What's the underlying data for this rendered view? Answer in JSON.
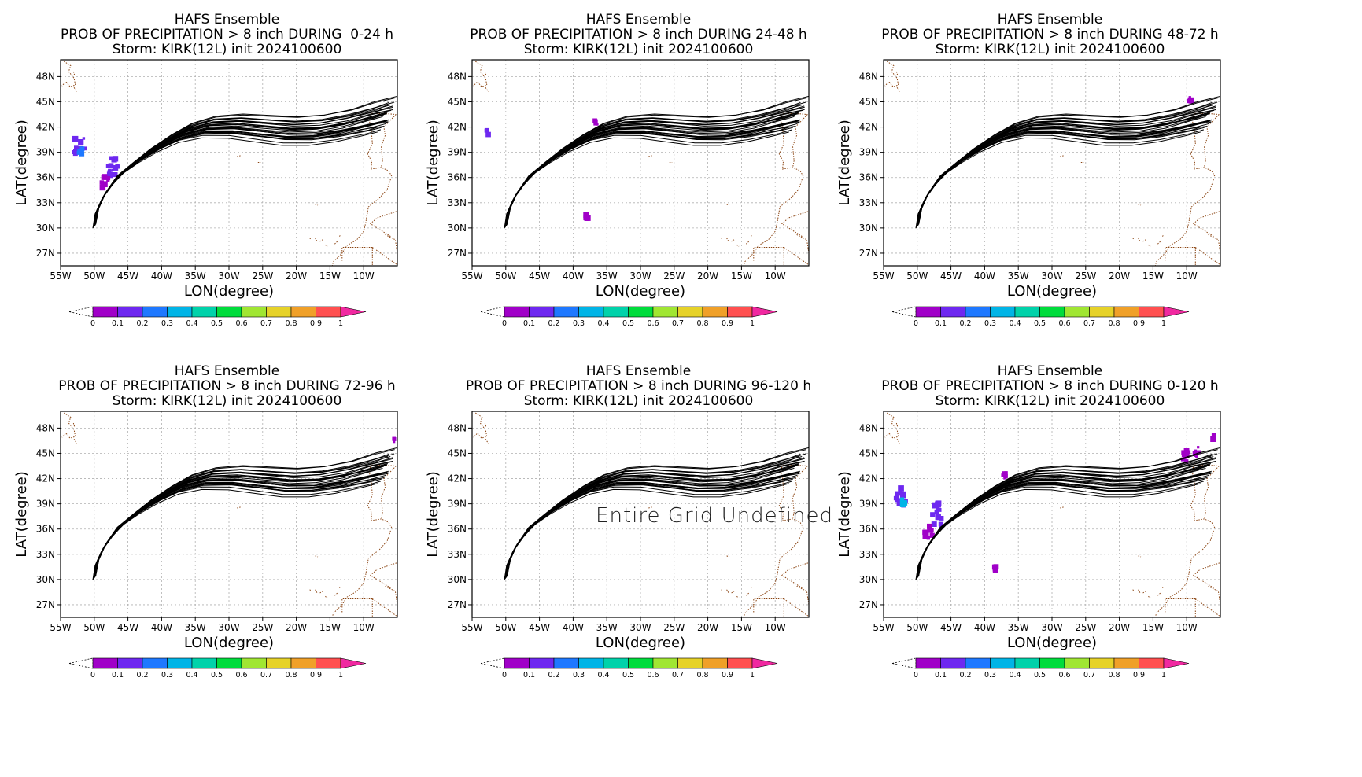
{
  "colors": {
    "track": "#000000",
    "coast": "#8b4513",
    "grid": "#b0b0b0",
    "prob": [
      "#a000c8",
      "#6e28f0",
      "#1e78ff",
      "#00b4e6",
      "#00d2aa",
      "#00dc3c",
      "#a0e632",
      "#e6d228",
      "#f0a028",
      "#ff5050",
      "#f028a0"
    ]
  },
  "colorbar": {
    "labels": [
      "0",
      "0.1",
      "0.2",
      "0.3",
      "0.4",
      "0.5",
      "0.6",
      "0.7",
      "0.8",
      "0.9",
      "1"
    ]
  },
  "chart_data": [
    {
      "type": "line",
      "title_line1": "HAFS Ensemble",
      "title_line2": "PROB OF PRECIPITATION > 8 inch DURING  0-24 h",
      "title_line3": "Storm: KIRK(12L) init 2024100600",
      "xlabel": "LON(degree)",
      "ylabel": "LAT(degree)",
      "xticks": [
        "55W",
        "50W",
        "45W",
        "40W",
        "35W",
        "30W",
        "25W",
        "20W",
        "15W",
        "10W"
      ],
      "yticks": [
        "27N",
        "30N",
        "33N",
        "36N",
        "39N",
        "42N",
        "45N",
        "48N"
      ],
      "xlim": [
        -55,
        -5
      ],
      "ylim": [
        25.5,
        50
      ],
      "grid": true,
      "note": "",
      "blobs": [
        {
          "lon": -52.3,
          "lat": 39.8,
          "r": 1.1,
          "color": 1
        },
        {
          "lon": -52.0,
          "lat": 39.2,
          "r": 0.4,
          "color": 2
        },
        {
          "lon": -47.0,
          "lat": 37.2,
          "r": 1.1,
          "color": 1
        },
        {
          "lon": -48.4,
          "lat": 35.5,
          "r": 0.7,
          "color": 0
        }
      ]
    },
    {
      "type": "line",
      "title_line1": "HAFS Ensemble",
      "title_line2": "PROB OF PRECIPITATION > 8 inch DURING 24-48 h",
      "title_line3": "Storm: KIRK(12L) init 2024100600",
      "xlabel": "LON(degree)",
      "ylabel": "LAT(degree)",
      "xticks": [
        "55W",
        "50W",
        "45W",
        "40W",
        "35W",
        "30W",
        "25W",
        "20W",
        "15W",
        "10W"
      ],
      "yticks": [
        "27N",
        "30N",
        "33N",
        "36N",
        "39N",
        "42N",
        "45N",
        "48N"
      ],
      "xlim": [
        -55,
        -5
      ],
      "ylim": [
        25.5,
        50
      ],
      "grid": true,
      "note": "",
      "blobs": [
        {
          "lon": -52.8,
          "lat": 41.4,
          "r": 0.35,
          "color": 1
        },
        {
          "lon": -36.5,
          "lat": 42.6,
          "r": 0.35,
          "color": 0
        },
        {
          "lon": -38.0,
          "lat": 31.3,
          "r": 0.25,
          "color": 0
        }
      ]
    },
    {
      "type": "line",
      "title_line1": "HAFS Ensemble",
      "title_line2": "PROB OF PRECIPITATION > 8 inch DURING 48-72 h",
      "title_line3": "Storm: KIRK(12L) init 2024100600",
      "xlabel": "LON(degree)",
      "ylabel": "LAT(degree)",
      "xticks": [
        "55W",
        "50W",
        "45W",
        "40W",
        "35W",
        "30W",
        "25W",
        "20W",
        "15W",
        "10W"
      ],
      "yticks": [
        "27N",
        "30N",
        "33N",
        "36N",
        "39N",
        "42N",
        "45N",
        "48N"
      ],
      "xlim": [
        -55,
        -5
      ],
      "ylim": [
        25.5,
        50
      ],
      "grid": true,
      "note": "",
      "blobs": [
        {
          "lon": -9.5,
          "lat": 45.3,
          "r": 0.25,
          "color": 0
        }
      ]
    },
    {
      "type": "line",
      "title_line1": "HAFS Ensemble",
      "title_line2": "PROB OF PRECIPITATION > 8 inch DURING 72-96 h",
      "title_line3": "Storm: KIRK(12L) init 2024100600",
      "xlabel": "LON(degree)",
      "ylabel": "LAT(degree)",
      "xticks": [
        "55W",
        "50W",
        "45W",
        "40W",
        "35W",
        "30W",
        "25W",
        "20W",
        "15W",
        "10W"
      ],
      "yticks": [
        "27N",
        "30N",
        "33N",
        "36N",
        "39N",
        "42N",
        "45N",
        "48N"
      ],
      "xlim": [
        -55,
        -5
      ],
      "ylim": [
        25.5,
        50
      ],
      "grid": true,
      "note": "",
      "blobs": [
        {
          "lon": -5.3,
          "lat": 46.6,
          "r": 0.3,
          "color": 0
        }
      ]
    },
    {
      "type": "line",
      "title_line1": "HAFS Ensemble",
      "title_line2": "PROB OF PRECIPITATION > 8 inch DURING 96-120 h",
      "title_line3": "Storm: KIRK(12L) init 2024100600",
      "xlabel": "LON(degree)",
      "ylabel": "LAT(degree)",
      "xticks": [
        "55W",
        "50W",
        "45W",
        "40W",
        "35W",
        "30W",
        "25W",
        "20W",
        "15W",
        "10W"
      ],
      "yticks": [
        "27N",
        "30N",
        "33N",
        "36N",
        "39N",
        "42N",
        "45N",
        "48N"
      ],
      "xlim": [
        -55,
        -5
      ],
      "ylim": [
        25.5,
        50
      ],
      "grid": true,
      "note": "Entire Grid Undefined",
      "blobs": []
    },
    {
      "type": "line",
      "title_line1": "HAFS Ensemble",
      "title_line2": "PROB OF PRECIPITATION > 8 inch DURING 0-120 h",
      "title_line3": "Storm: KIRK(12L) init 2024100600",
      "xlabel": "LON(degree)",
      "ylabel": "LAT(degree)",
      "xticks": [
        "55W",
        "50W",
        "45W",
        "40W",
        "35W",
        "30W",
        "25W",
        "20W",
        "15W",
        "10W"
      ],
      "yticks": [
        "27N",
        "30N",
        "33N",
        "36N",
        "39N",
        "42N",
        "45N",
        "48N"
      ],
      "xlim": [
        -55,
        -5
      ],
      "ylim": [
        25.5,
        50
      ],
      "grid": true,
      "note": "",
      "blobs": [
        {
          "lon": -52.3,
          "lat": 39.8,
          "r": 1.1,
          "color": 1
        },
        {
          "lon": -52.0,
          "lat": 39.2,
          "r": 0.4,
          "color": 3
        },
        {
          "lon": -46.8,
          "lat": 37.6,
          "r": 1.2,
          "color": 1
        },
        {
          "lon": -48.4,
          "lat": 35.6,
          "r": 0.8,
          "color": 0
        },
        {
          "lon": -38.5,
          "lat": 31.4,
          "r": 0.25,
          "color": 0
        },
        {
          "lon": -37.0,
          "lat": 42.5,
          "r": 0.4,
          "color": 0
        },
        {
          "lon": -10.0,
          "lat": 44.6,
          "r": 0.7,
          "color": 0
        },
        {
          "lon": -8.5,
          "lat": 45.2,
          "r": 0.5,
          "color": 0
        },
        {
          "lon": -6.0,
          "lat": 46.9,
          "r": 0.3,
          "color": 0
        }
      ]
    }
  ]
}
